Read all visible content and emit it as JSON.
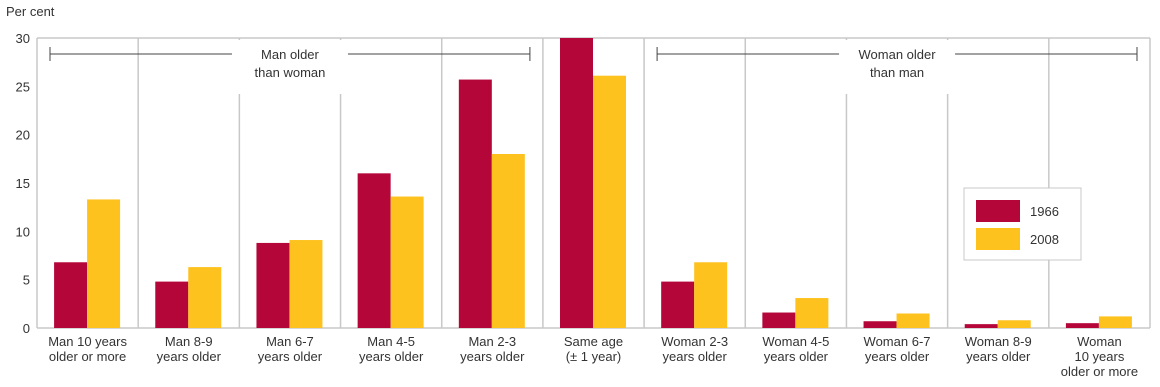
{
  "chart_data": {
    "type": "bar",
    "ylabel": "Per cent",
    "ylim": [
      0,
      30
    ],
    "yticks": [
      "0",
      "5",
      "10",
      "15",
      "20",
      "25",
      "30"
    ],
    "categories": [
      [
        "Man 10 years",
        "older or more"
      ],
      [
        "Man 8-9",
        "years older"
      ],
      [
        "Man 6-7",
        "years older"
      ],
      [
        "Man 4-5",
        "years older"
      ],
      [
        "Man 2-3",
        "years older"
      ],
      [
        "Same age",
        "(± 1 year)"
      ],
      [
        "Woman 2-3",
        "years older"
      ],
      [
        "Woman 4-5",
        "years older"
      ],
      [
        "Woman 6-7",
        "years older"
      ],
      [
        "Woman 8-9",
        "years older"
      ],
      [
        "Woman",
        "10 years",
        "older or more"
      ]
    ],
    "series": [
      {
        "name": "1966",
        "color": "#b5063a",
        "values": [
          6.8,
          4.8,
          8.8,
          16.0,
          25.7,
          30.0,
          4.8,
          1.6,
          0.7,
          0.4,
          0.5
        ]
      },
      {
        "name": "2008",
        "color": "#fec21f",
        "values": [
          13.3,
          6.3,
          9.1,
          13.6,
          18.0,
          26.1,
          6.8,
          3.1,
          1.5,
          0.8,
          1.2
        ]
      }
    ],
    "annotations": [
      {
        "lines": [
          "Man older",
          "than woman"
        ],
        "from_category": 0,
        "to_category": 4
      },
      {
        "lines": [
          "Woman older",
          "than man"
        ],
        "from_category": 6,
        "to_category": 10
      }
    ],
    "legend_position": "right",
    "grid": "vertical-separators",
    "grid_color": "#c8c8c8"
  }
}
